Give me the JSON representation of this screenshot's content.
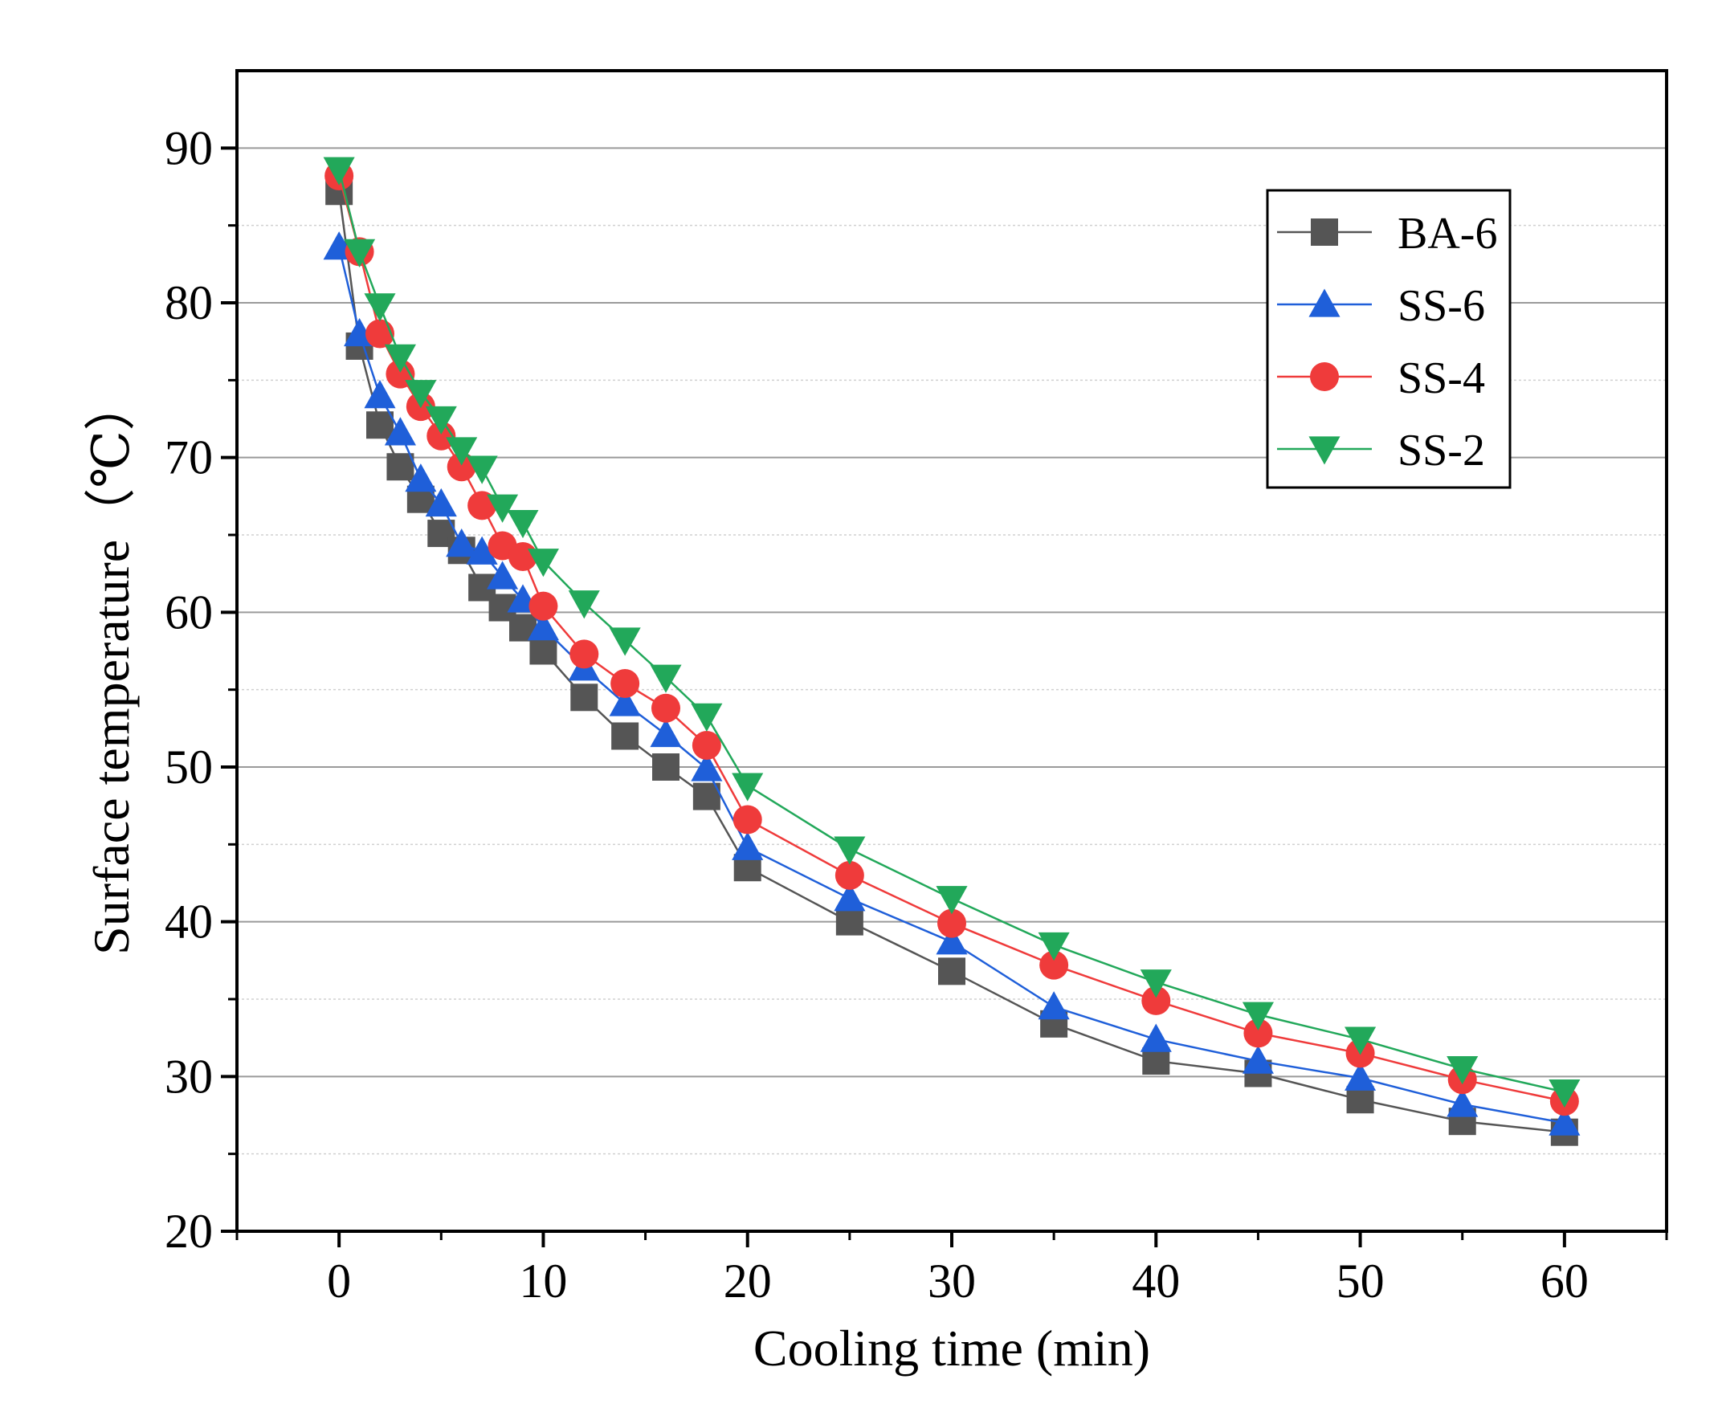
{
  "chart_data": {
    "type": "line",
    "title": "",
    "xlabel": "Cooling time (min)",
    "ylabel": "Surface temperature（℃）",
    "xlim": [
      -5,
      65
    ],
    "ylim": [
      20,
      95
    ],
    "xticks": [
      0,
      10,
      20,
      30,
      40,
      50,
      60
    ],
    "yticks": [
      20,
      30,
      40,
      50,
      60,
      70,
      80,
      90
    ],
    "grid": "horizontal",
    "legend_position": "top-right",
    "x": [
      0,
      1,
      2,
      3,
      4,
      5,
      6,
      7,
      8,
      9,
      10,
      12,
      14,
      16,
      18,
      20,
      25,
      30,
      35,
      40,
      45,
      50,
      55,
      60
    ],
    "series": [
      {
        "name": "BA-6",
        "color": "#555555",
        "marker": "square",
        "values": [
          87.2,
          77.2,
          72.1,
          69.4,
          67.3,
          65.1,
          64.0,
          61.6,
          60.3,
          59.0,
          57.5,
          54.5,
          52.0,
          50.0,
          48.1,
          43.5,
          40.0,
          36.8,
          33.4,
          31.0,
          30.2,
          28.5,
          27.1,
          26.4
        ]
      },
      {
        "name": "SS-6",
        "color": "#1f5fd9",
        "marker": "triangle-up",
        "values": [
          83.6,
          78.0,
          74.0,
          71.6,
          68.6,
          67.0,
          64.4,
          63.9,
          62.3,
          60.8,
          59.0,
          56.4,
          54.1,
          52.1,
          49.9,
          44.8,
          41.5,
          38.7,
          34.5,
          32.4,
          31.0,
          29.9,
          28.2,
          27.0
        ]
      },
      {
        "name": "SS-4",
        "color": "#ef3b3b",
        "marker": "circle",
        "values": [
          88.2,
          83.3,
          78.0,
          75.4,
          73.3,
          71.4,
          69.4,
          66.9,
          64.3,
          63.6,
          60.4,
          57.3,
          55.4,
          53.8,
          51.4,
          46.6,
          43.0,
          39.9,
          37.2,
          34.9,
          32.8,
          31.5,
          29.8,
          28.4
        ]
      },
      {
        "name": "SS-2",
        "color": "#22a85a",
        "marker": "triangle-down",
        "values": [
          88.6,
          83.3,
          79.8,
          76.5,
          74.2,
          72.5,
          70.5,
          69.3,
          66.8,
          65.8,
          63.3,
          60.6,
          58.2,
          55.8,
          53.3,
          48.8,
          44.7,
          41.5,
          38.5,
          36.1,
          34.0,
          32.4,
          30.5,
          29.0
        ]
      }
    ]
  }
}
